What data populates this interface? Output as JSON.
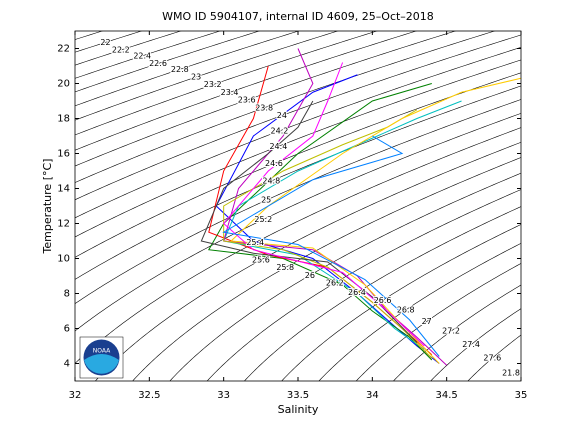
{
  "chart_data": {
    "type": "ts-diagram",
    "title": "WMO ID 5904107, internal ID 4609, 25–Oct–2018",
    "x_label": "Salinity",
    "y_label": "Temperature [°C]",
    "logo_text": "NOAA",
    "xlim": [
      32,
      35
    ],
    "xticks": [
      32,
      32.5,
      33,
      33.5,
      34,
      34.5,
      35
    ],
    "ylim": [
      3,
      23
    ],
    "yticks": [
      4,
      6,
      8,
      10,
      12,
      14,
      16,
      18,
      20,
      22
    ],
    "contour_color": "#000000",
    "contour_levels": [
      21.8,
      22,
      22.2,
      22.4,
      22.6,
      22.8,
      23,
      23.2,
      23.4,
      23.6,
      23.8,
      24,
      24.2,
      24.4,
      24.6,
      24.8,
      25,
      25.2,
      25.4,
      25.6,
      25.8,
      26,
      26.2,
      26.4,
      26.6,
      26.8,
      27,
      27.2,
      27.4,
      27.6
    ],
    "series": [
      {
        "color": "#0000ff",
        "x": [
          33.9,
          33.6,
          33.2,
          32.95,
          33.2,
          33.6,
          33.9,
          34.1,
          34.3,
          34.45
        ],
        "values": [
          20.5,
          19.5,
          17,
          13,
          11,
          10,
          8,
          6.5,
          5,
          4
        ]
      },
      {
        "color": "#008000",
        "x": [
          34.4,
          34.0,
          33.5,
          33.0,
          32.9,
          33.4,
          33.8,
          34.0,
          34.25,
          34.4
        ],
        "values": [
          20,
          19,
          16,
          12,
          10.5,
          10,
          8.5,
          7,
          5.5,
          4.2
        ]
      },
      {
        "color": "#ff0000",
        "x": [
          33.3,
          33.2,
          33.0,
          32.9,
          33.3,
          33.7,
          34.0,
          34.2,
          34.4
        ],
        "values": [
          21,
          18,
          15,
          11.5,
          10.2,
          9.5,
          7.5,
          6,
          4.5
        ]
      },
      {
        "color": "#00bfbf",
        "x": [
          34.6,
          34.3,
          33.9,
          33.5,
          33.1,
          33.0,
          33.5,
          33.9,
          34.15,
          34.35
        ],
        "values": [
          19,
          18,
          16.5,
          15,
          13,
          11,
          10.2,
          8,
          6,
          4.8
        ]
      },
      {
        "color": "#bf00bf",
        "x": [
          33.5,
          33.6,
          33.4,
          33.1,
          33.0,
          33.6,
          33.9,
          34.1,
          34.3,
          34.5
        ],
        "values": [
          22,
          20,
          17,
          14,
          11,
          10.5,
          9,
          7,
          5.5,
          3.9
        ]
      },
      {
        "color": "#bfbf00",
        "x": [
          34.3,
          34.1,
          33.8,
          33.4,
          33.0,
          33.0,
          33.4,
          33.7,
          34.0,
          34.2,
          34.4
        ],
        "values": [
          18.5,
          17.5,
          16.5,
          15,
          13,
          11,
          10.5,
          9.5,
          7.5,
          6,
          4.3
        ]
      },
      {
        "color": "#404040",
        "x": [
          33.6,
          33.5,
          33.3,
          33.0,
          32.85,
          33.2,
          33.7,
          34.0,
          34.3
        ],
        "values": [
          19,
          17.5,
          16,
          14,
          11,
          10.3,
          9.8,
          7.8,
          5.2
        ]
      },
      {
        "color": "#ffcc00",
        "x": [
          35.0,
          34.6,
          34.2,
          33.8,
          33.3,
          33.05,
          33.6,
          33.95,
          34.2,
          34.45
        ],
        "values": [
          20.3,
          19.5,
          18,
          16,
          13,
          11,
          10.6,
          8.5,
          6.2,
          4
        ]
      },
      {
        "color": "#ff00ff",
        "x": [
          33.8,
          33.7,
          33.6,
          33.3,
          33.0,
          33.2,
          33.8,
          34.1,
          34.35
        ],
        "values": [
          21.2,
          19,
          17,
          15,
          12,
          10.5,
          9.2,
          7,
          5
        ]
      },
      {
        "color": "#0080ff",
        "x": [
          34.0,
          34.2,
          34.0,
          33.6,
          33.2,
          33.0,
          33.5,
          33.95,
          34.25,
          34.45
        ],
        "values": [
          17,
          16,
          15.5,
          14.5,
          12.5,
          11.5,
          10.8,
          8.8,
          6.5,
          4.4
        ]
      }
    ]
  }
}
